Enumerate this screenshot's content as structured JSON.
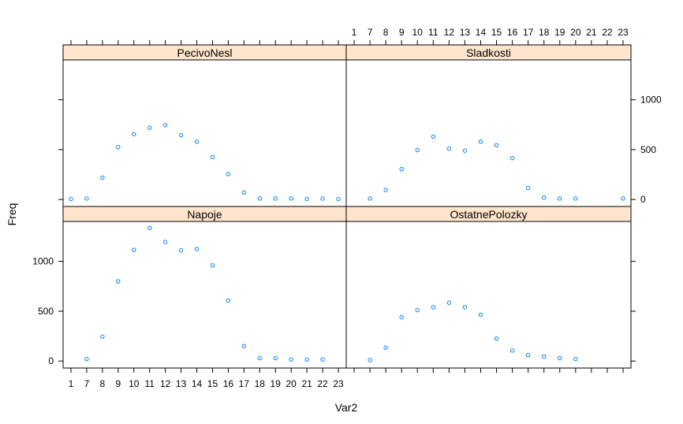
{
  "chart_data": {
    "type": "scatter",
    "xlabel": "Var2",
    "ylabel": "Freq",
    "categories": [
      "1",
      "7",
      "8",
      "9",
      "10",
      "11",
      "12",
      "13",
      "14",
      "15",
      "16",
      "17",
      "18",
      "19",
      "20",
      "21",
      "22",
      "23"
    ],
    "y_ticks": [
      0,
      500,
      1000
    ],
    "ylim": [
      -70,
      1400
    ],
    "colors": {
      "point": "#0080ff",
      "strip": "#ffe5cc",
      "axis": "#000000"
    },
    "panels": [
      {
        "name": "PecivoNesl",
        "row": 0,
        "col": 0,
        "values": [
          5,
          10,
          220,
          525,
          655,
          720,
          745,
          645,
          580,
          425,
          255,
          70,
          10,
          10,
          10,
          5,
          10,
          5
        ]
      },
      {
        "name": "Sladkosti",
        "row": 0,
        "col": 1,
        "values": [
          null,
          10,
          95,
          305,
          495,
          630,
          510,
          490,
          580,
          545,
          415,
          115,
          20,
          10,
          10,
          null,
          null,
          10
        ]
      },
      {
        "name": "Napoje",
        "row": 1,
        "col": 0,
        "values": [
          null,
          20,
          245,
          800,
          1115,
          1335,
          1195,
          1110,
          1125,
          960,
          605,
          150,
          30,
          30,
          15,
          15,
          15,
          null
        ]
      },
      {
        "name": "OstatnePolozky",
        "row": 1,
        "col": 1,
        "values": [
          null,
          10,
          135,
          440,
          510,
          540,
          585,
          540,
          465,
          225,
          105,
          60,
          45,
          30,
          20,
          null,
          null,
          null
        ]
      }
    ]
  }
}
